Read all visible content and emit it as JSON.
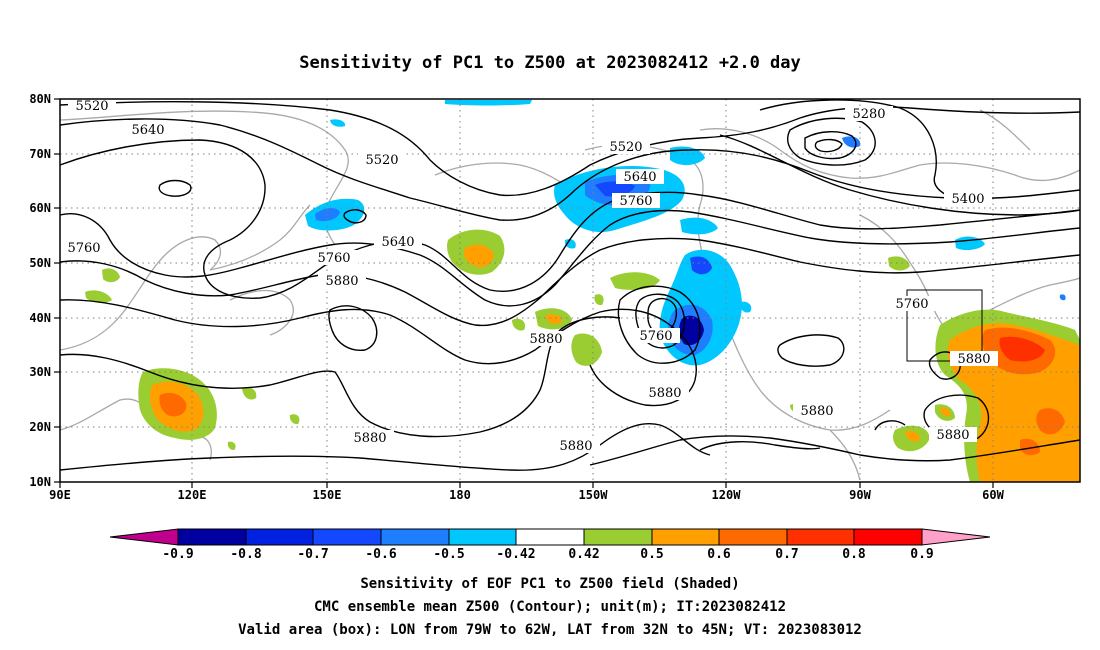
{
  "title": "Sensitivity of PC1 to Z500 at 2023082412 +2.0 day",
  "lon_ticks": [
    "90E",
    "120E",
    "150E",
    "180",
    "150W",
    "120W",
    "90W",
    "60W"
  ],
  "lat_ticks": [
    "80N",
    "70N",
    "60N",
    "50N",
    "40N",
    "30N",
    "20N",
    "10N"
  ],
  "contour_labels": [
    "5520",
    "5640",
    "5520",
    "5640",
    "5760",
    "5880",
    "5760",
    "5520",
    "5640",
    "5760",
    "5760",
    "5880",
    "5880",
    "5280",
    "5400",
    "5760",
    "5880",
    "5880",
    "5880",
    "5880"
  ],
  "colorbar": {
    "levels": [
      "-0.9",
      "-0.8",
      "-0.7",
      "-0.6",
      "-0.5",
      "-0.42",
      "0.42",
      "0.5",
      "0.6",
      "0.7",
      "0.8",
      "0.9"
    ],
    "colors": [
      "#0000a0",
      "#0022e0",
      "#1448ff",
      "#1e7eff",
      "#00c8ff",
      "#ffffff",
      "#9acd32",
      "#ffa000",
      "#ff6a00",
      "#ff3000",
      "#ff0000"
    ],
    "low_arrow_color": "#c0008c",
    "high_arrow_color": "#ffa0c8"
  },
  "caption": [
    "Sensitivity of EOF PC1 to Z500 field (Shaded)",
    "CMC ensemble mean Z500 (Contour); unit(m); IT:2023082412",
    "Valid area (box): LON from 79W to 62W, LAT from 32N to 45N; VT: 2023083012"
  ]
}
